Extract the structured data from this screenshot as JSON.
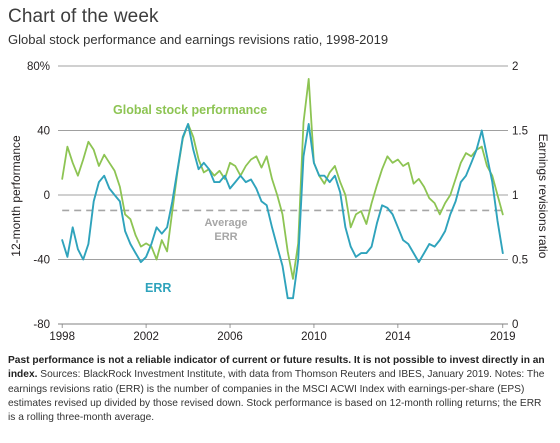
{
  "header": {
    "title": "Chart of the week",
    "subtitle": "Global stock performance and earnings revisions ratio, 1998-2019"
  },
  "colors": {
    "stock": "#8dc453",
    "err": "#2fa3bc",
    "average": "#a6a6a6",
    "grid": "#808080",
    "text": "#231f20"
  },
  "chart_data": {
    "type": "line",
    "xlim": [
      1997.8,
      2019.25
    ],
    "x_ticks": [
      1998,
      2002,
      2006,
      2010,
      2014,
      2019
    ],
    "left_axis": {
      "label": "12-month performance",
      "lim": [
        -80,
        80
      ],
      "ticks": [
        -80,
        -40,
        0,
        40,
        80
      ],
      "tick_labels": [
        "-80",
        "-40",
        "0",
        "40",
        "80%"
      ]
    },
    "right_axis": {
      "label": "Earnings revisions ratio",
      "lim": [
        0,
        2
      ],
      "ticks": [
        0,
        0.5,
        1,
        1.5,
        2
      ],
      "tick_labels": [
        "0",
        "0.5",
        "1",
        "1.5",
        "2"
      ]
    },
    "grid": "horizontal at major ticks",
    "series": [
      {
        "name": "Global stock performance",
        "axis": "left",
        "x": [
          1998.0,
          1998.25,
          1998.5,
          1998.75,
          1999.0,
          1999.25,
          1999.5,
          1999.75,
          2000.0,
          2000.25,
          2000.5,
          2000.75,
          2001.0,
          2001.25,
          2001.5,
          2001.75,
          2002.0,
          2002.25,
          2002.5,
          2002.75,
          2003.0,
          2003.25,
          2003.5,
          2003.75,
          2004.0,
          2004.25,
          2004.5,
          2004.75,
          2005.0,
          2005.25,
          2005.5,
          2005.75,
          2006.0,
          2006.25,
          2006.5,
          2006.75,
          2007.0,
          2007.25,
          2007.5,
          2007.75,
          2008.0,
          2008.25,
          2008.5,
          2008.75,
          2009.0,
          2009.25,
          2009.5,
          2009.75,
          2010.0,
          2010.25,
          2010.5,
          2010.75,
          2011.0,
          2011.25,
          2011.5,
          2011.75,
          2012.0,
          2012.25,
          2012.5,
          2012.75,
          2013.0,
          2013.25,
          2013.5,
          2013.75,
          2014.0,
          2014.25,
          2014.5,
          2014.75,
          2015.0,
          2015.25,
          2015.5,
          2015.75,
          2016.0,
          2016.25,
          2016.5,
          2016.75,
          2017.0,
          2017.25,
          2017.5,
          2017.75,
          2018.0,
          2018.25,
          2018.5,
          2018.75,
          2019.0
        ],
        "values": [
          10,
          30,
          20,
          12,
          22,
          33,
          28,
          18,
          25,
          20,
          15,
          5,
          -12,
          -15,
          -25,
          -32,
          -30,
          -32,
          -40,
          -28,
          -35,
          -10,
          15,
          35,
          44,
          36,
          22,
          14,
          16,
          12,
          15,
          10,
          20,
          18,
          12,
          18,
          22,
          24,
          17,
          24,
          10,
          0,
          -12,
          -35,
          -52,
          -30,
          45,
          72,
          20,
          12,
          7,
          14,
          18,
          8,
          0,
          -20,
          -12,
          -10,
          -18,
          -5,
          6,
          16,
          24,
          20,
          22,
          18,
          20,
          7,
          10,
          5,
          -2,
          -5,
          -12,
          -5,
          0,
          10,
          20,
          26,
          24,
          28,
          30,
          18,
          12,
          0,
          -12
        ]
      },
      {
        "name": "ERR",
        "axis": "right",
        "x": [
          1998.0,
          1998.25,
          1998.5,
          1998.75,
          1999.0,
          1999.25,
          1999.5,
          1999.75,
          2000.0,
          2000.25,
          2000.5,
          2000.75,
          2001.0,
          2001.25,
          2001.5,
          2001.75,
          2002.0,
          2002.25,
          2002.5,
          2002.75,
          2003.0,
          2003.25,
          2003.5,
          2003.75,
          2004.0,
          2004.25,
          2004.5,
          2004.75,
          2005.0,
          2005.25,
          2005.5,
          2005.75,
          2006.0,
          2006.25,
          2006.5,
          2006.75,
          2007.0,
          2007.25,
          2007.5,
          2007.75,
          2008.0,
          2008.25,
          2008.5,
          2008.75,
          2009.0,
          2009.25,
          2009.5,
          2009.75,
          2010.0,
          2010.25,
          2010.5,
          2010.75,
          2011.0,
          2011.25,
          2011.5,
          2011.75,
          2012.0,
          2012.25,
          2012.5,
          2012.75,
          2013.0,
          2013.25,
          2013.5,
          2013.75,
          2014.0,
          2014.25,
          2014.5,
          2014.75,
          2015.0,
          2015.25,
          2015.5,
          2015.75,
          2016.0,
          2016.25,
          2016.5,
          2016.75,
          2017.0,
          2017.25,
          2017.5,
          2017.75,
          2018.0,
          2018.25,
          2018.5,
          2018.75,
          2019.0
        ],
        "values": [
          0.65,
          0.52,
          0.75,
          0.58,
          0.5,
          0.62,
          0.95,
          1.1,
          1.15,
          1.05,
          1.0,
          0.95,
          0.72,
          0.62,
          0.55,
          0.48,
          0.52,
          0.62,
          0.75,
          0.7,
          0.75,
          0.95,
          1.2,
          1.45,
          1.55,
          1.35,
          1.2,
          1.25,
          1.2,
          1.1,
          1.1,
          1.15,
          1.05,
          1.1,
          1.15,
          1.1,
          1.12,
          1.05,
          0.95,
          0.92,
          0.75,
          0.6,
          0.45,
          0.2,
          0.2,
          0.5,
          1.3,
          1.55,
          1.25,
          1.15,
          1.15,
          1.1,
          1.15,
          1.02,
          0.75,
          0.6,
          0.52,
          0.55,
          0.55,
          0.6,
          0.78,
          0.92,
          0.9,
          0.85,
          0.75,
          0.65,
          0.62,
          0.55,
          0.48,
          0.55,
          0.62,
          0.6,
          0.65,
          0.72,
          0.85,
          0.95,
          1.1,
          1.15,
          1.25,
          1.35,
          1.5,
          1.3,
          1.1,
          0.8,
          0.55
        ]
      },
      {
        "name": "Average ERR",
        "axis": "right",
        "style": "dashed",
        "x": [
          1998.0,
          2019.0
        ],
        "values": [
          0.88,
          0.88
        ]
      }
    ],
    "annotations": [
      {
        "text": "Global stock performance",
        "near": "upper-left, above stock line"
      },
      {
        "text": "Average ERR",
        "near": "center, at dashed line"
      },
      {
        "text": "ERR",
        "near": "lower-left, below ERR line"
      }
    ]
  },
  "footnote": {
    "bold": "Past performance is not a reliable indicator of current or future results. It is not possible to invest directly in an index.",
    "rest": " Sources: BlackRock Investment Institute, with data from Thomson Reuters and IBES, January 2019. Notes: The earnings revisions ratio (ERR) is the number of companies in the MSCI ACWI Index with earnings-per-share (EPS) estimates revised up divided by those revised down. Stock performance is based on 12-month rolling returns; the ERR is a rolling three-month average."
  }
}
